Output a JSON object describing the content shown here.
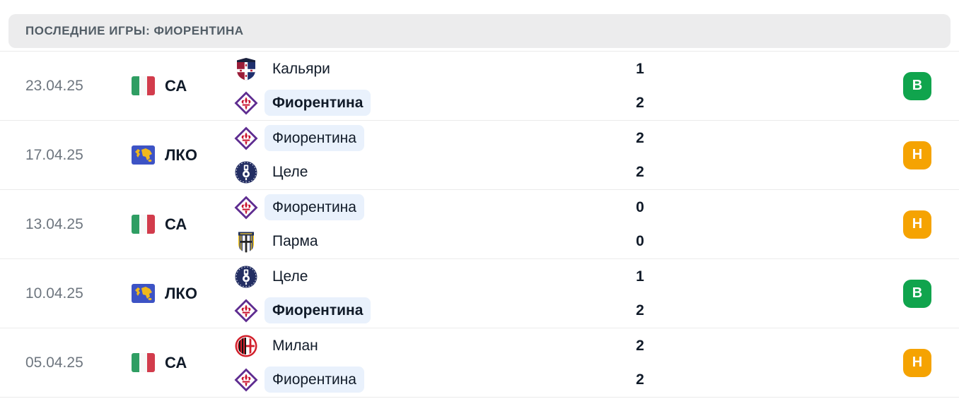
{
  "header": {
    "title": "ПОСЛЕДНИЕ ИГРЫ: ФИОРЕНТИНА"
  },
  "colors": {
    "win": "#10a44d",
    "draw": "#f5a302",
    "pill_highlight": "#e9f1fc",
    "header_bg": "#ececed",
    "flag_green": "#2f9e63",
    "flag_red": "#d23c4c",
    "world_blue": "#3d53c5",
    "world_gold": "#f0b81c"
  },
  "rows": [
    {
      "date": "23.04.25",
      "competition": {
        "label": "СА",
        "icon": "italy-flag"
      },
      "home": {
        "name": "Кальяри",
        "logo": "cagliari",
        "highlight": false,
        "bold": false
      },
      "away": {
        "name": "Фиорентина",
        "logo": "fiorentina",
        "highlight": true,
        "bold": true
      },
      "score_home": "1",
      "score_away": "2",
      "result": {
        "label": "В",
        "type": "win"
      }
    },
    {
      "date": "17.04.25",
      "competition": {
        "label": "ЛКО",
        "icon": "world"
      },
      "home": {
        "name": "Фиорентина",
        "logo": "fiorentina",
        "highlight": true,
        "bold": false
      },
      "away": {
        "name": "Целе",
        "logo": "celje",
        "highlight": false,
        "bold": false
      },
      "score_home": "2",
      "score_away": "2",
      "result": {
        "label": "Н",
        "type": "draw"
      }
    },
    {
      "date": "13.04.25",
      "competition": {
        "label": "СА",
        "icon": "italy-flag"
      },
      "home": {
        "name": "Фиорентина",
        "logo": "fiorentina",
        "highlight": true,
        "bold": false
      },
      "away": {
        "name": "Парма",
        "logo": "parma",
        "highlight": false,
        "bold": false
      },
      "score_home": "0",
      "score_away": "0",
      "result": {
        "label": "Н",
        "type": "draw"
      }
    },
    {
      "date": "10.04.25",
      "competition": {
        "label": "ЛКО",
        "icon": "world"
      },
      "home": {
        "name": "Целе",
        "logo": "celje",
        "highlight": false,
        "bold": false
      },
      "away": {
        "name": "Фиорентина",
        "logo": "fiorentina",
        "highlight": true,
        "bold": true
      },
      "score_home": "1",
      "score_away": "2",
      "result": {
        "label": "В",
        "type": "win"
      }
    },
    {
      "date": "05.04.25",
      "competition": {
        "label": "СА",
        "icon": "italy-flag"
      },
      "home": {
        "name": "Милан",
        "logo": "milan",
        "highlight": false,
        "bold": false
      },
      "away": {
        "name": "Фиорентина",
        "logo": "fiorentina",
        "highlight": true,
        "bold": false
      },
      "score_home": "2",
      "score_away": "2",
      "result": {
        "label": "Н",
        "type": "draw"
      }
    }
  ]
}
